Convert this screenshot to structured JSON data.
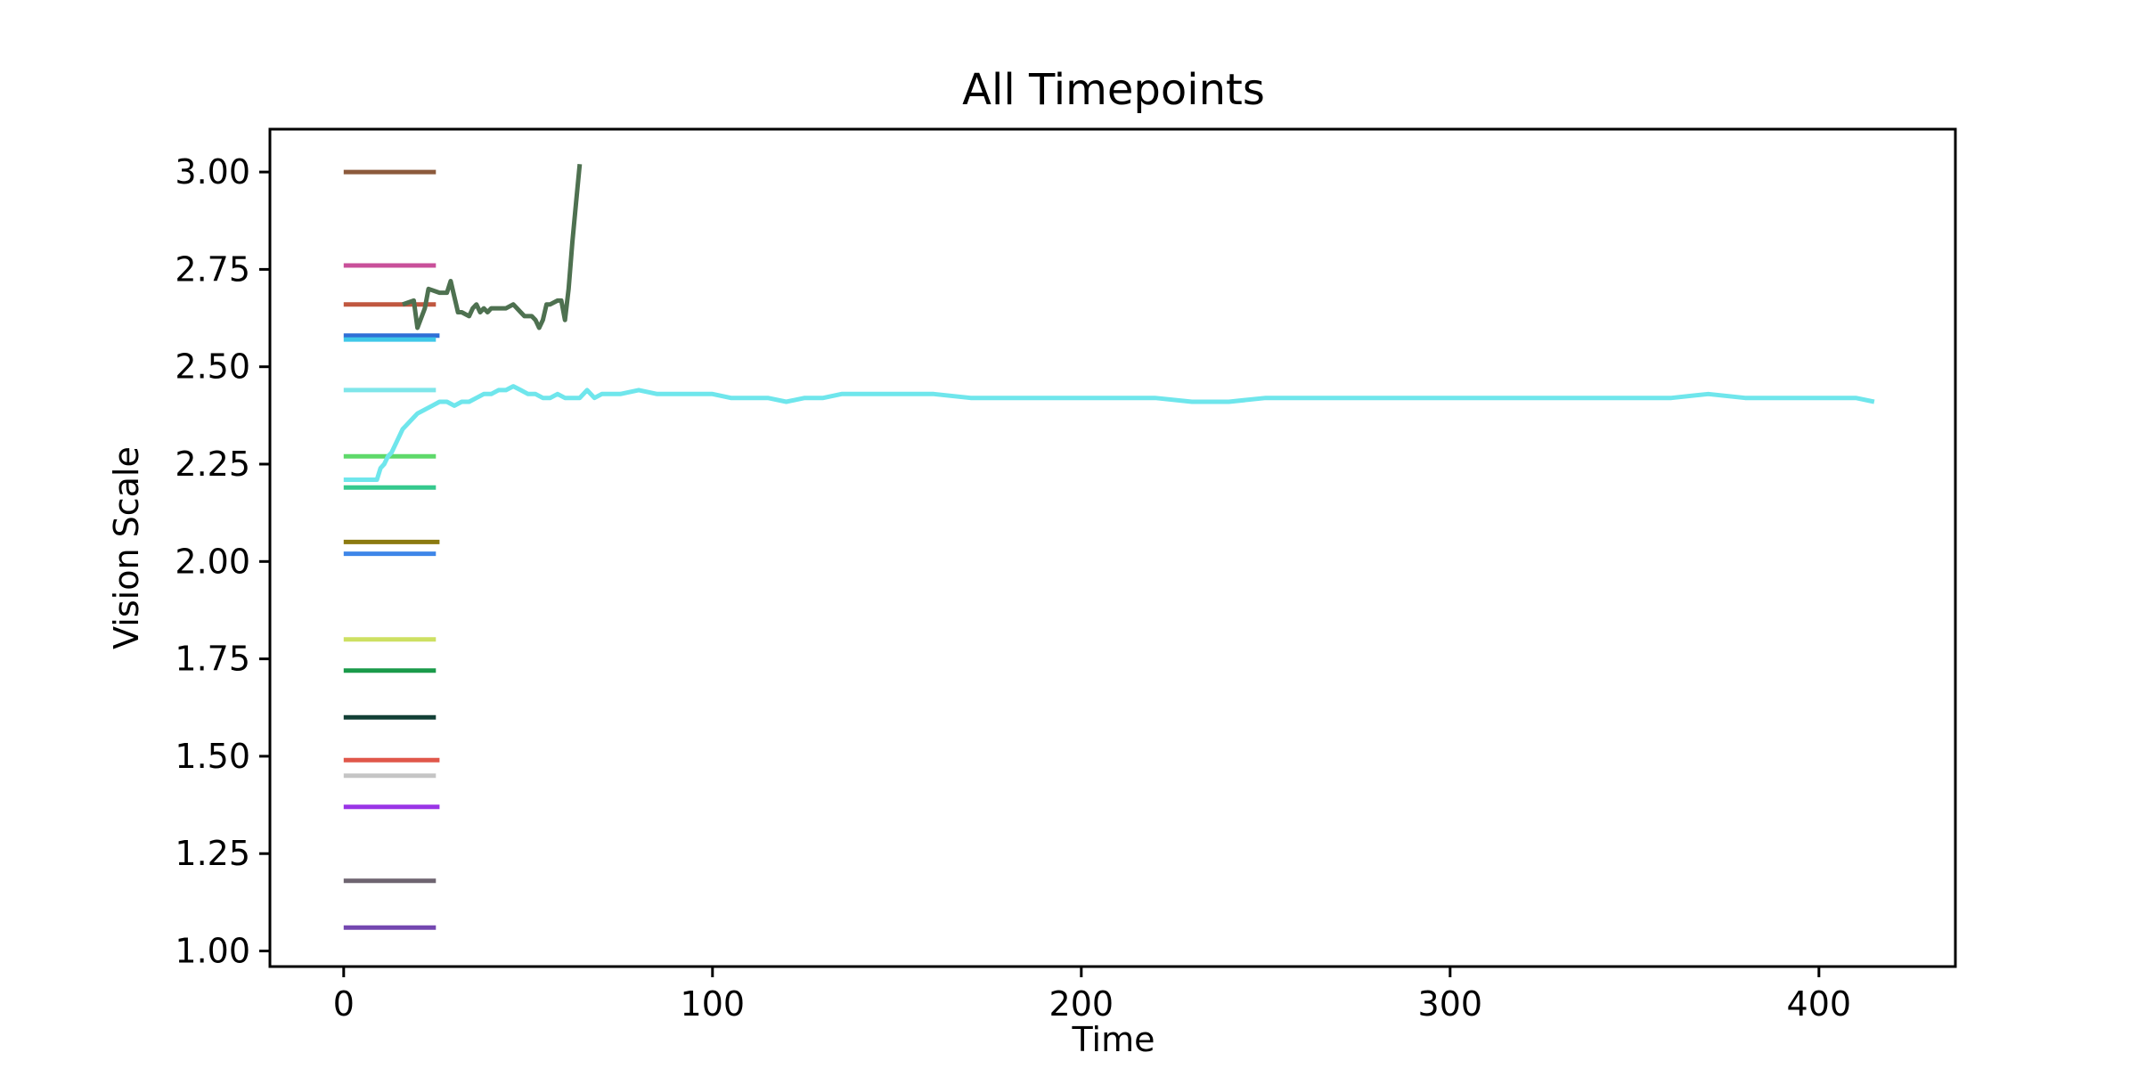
{
  "chart_data": {
    "type": "line",
    "title": "All Timepoints",
    "xlabel": "Time",
    "ylabel": "Vision Scale",
    "xlim": [
      -20,
      437
    ],
    "ylim": [
      0.96,
      3.11
    ],
    "xticks": [
      "0",
      "100",
      "200",
      "300",
      "400"
    ],
    "xtick_values": [
      0,
      100,
      200,
      300,
      400
    ],
    "yticks": [
      "1.00",
      "1.25",
      "1.50",
      "1.75",
      "2.00",
      "2.25",
      "2.50",
      "2.75",
      "3.00"
    ],
    "ytick_values": [
      1.0,
      1.25,
      1.5,
      1.75,
      2.0,
      2.25,
      2.5,
      2.75,
      3.0
    ],
    "grid": false,
    "legend": false,
    "series": [
      {
        "color": "#8c5a3c",
        "x": [
          0,
          25
        ],
        "y": [
          3.0,
          3.0
        ]
      },
      {
        "color": "#c9509a",
        "x": [
          0,
          25
        ],
        "y": [
          2.76,
          2.76
        ]
      },
      {
        "color": "#c0573f",
        "x": [
          0,
          25
        ],
        "y": [
          2.66,
          2.66
        ]
      },
      {
        "color": "#2f6fd6",
        "x": [
          0,
          26
        ],
        "y": [
          2.58,
          2.58
        ]
      },
      {
        "color": "#3fc8e8",
        "x": [
          0,
          25
        ],
        "y": [
          2.57,
          2.57
        ]
      },
      {
        "color": "#7fe6ea",
        "x": [
          0,
          25
        ],
        "y": [
          2.44,
          2.44
        ]
      },
      {
        "color": "#5ed96a",
        "x": [
          0,
          25
        ],
        "y": [
          2.27,
          2.27
        ]
      },
      {
        "color": "#35c98e",
        "x": [
          0,
          25
        ],
        "y": [
          2.19,
          2.19
        ]
      },
      {
        "color": "#8c7a10",
        "x": [
          0,
          26
        ],
        "y": [
          2.05,
          2.05
        ]
      },
      {
        "color": "#3e86e8",
        "x": [
          0,
          25
        ],
        "y": [
          2.02,
          2.02
        ]
      },
      {
        "color": "#cde062",
        "x": [
          0,
          25
        ],
        "y": [
          1.8,
          1.8
        ]
      },
      {
        "color": "#1a9a4a",
        "x": [
          0,
          25
        ],
        "y": [
          1.72,
          1.72
        ]
      },
      {
        "color": "#123f35",
        "x": [
          0,
          25
        ],
        "y": [
          1.6,
          1.6
        ]
      },
      {
        "color": "#e0574a",
        "x": [
          0,
          26
        ],
        "y": [
          1.49,
          1.49
        ]
      },
      {
        "color": "#c5c5c5",
        "x": [
          0,
          25
        ],
        "y": [
          1.45,
          1.45
        ]
      },
      {
        "color": "#9a35e6",
        "x": [
          0,
          26
        ],
        "y": [
          1.37,
          1.37
        ]
      },
      {
        "color": "#6e6470",
        "x": [
          0,
          25
        ],
        "y": [
          1.18,
          1.18
        ]
      },
      {
        "color": "#7447b0",
        "x": [
          0,
          25
        ],
        "y": [
          1.06,
          1.06
        ]
      },
      {
        "color": "#4e7150",
        "x": [
          16,
          19,
          20,
          22,
          23,
          26,
          28,
          29,
          31,
          32,
          34,
          35,
          36,
          37,
          38,
          39,
          40,
          42,
          44,
          46,
          47,
          48,
          49,
          51,
          52,
          53,
          54,
          55,
          56,
          58,
          59,
          60,
          61,
          62,
          63,
          64
        ],
        "y": [
          2.66,
          2.67,
          2.6,
          2.65,
          2.7,
          2.69,
          2.69,
          2.72,
          2.64,
          2.64,
          2.63,
          2.65,
          2.66,
          2.64,
          2.65,
          2.64,
          2.65,
          2.65,
          2.65,
          2.66,
          2.65,
          2.64,
          2.63,
          2.63,
          2.62,
          2.6,
          2.62,
          2.66,
          2.66,
          2.67,
          2.67,
          2.62,
          2.7,
          2.82,
          2.92,
          3.02
        ]
      },
      {
        "color": "#6fe6ec",
        "x": [
          0,
          2,
          4,
          6,
          8,
          9,
          10,
          11,
          12,
          13,
          14,
          15,
          16,
          17,
          18,
          19,
          20,
          22,
          24,
          26,
          28,
          30,
          32,
          34,
          36,
          38,
          40,
          42,
          44,
          46,
          48,
          50,
          52,
          54,
          56,
          58,
          60,
          62,
          64,
          66,
          68,
          70,
          75,
          80,
          85,
          90,
          95,
          100,
          105,
          110,
          115,
          120,
          125,
          130,
          135,
          140,
          145,
          150,
          160,
          170,
          180,
          190,
          200,
          210,
          220,
          230,
          240,
          250,
          260,
          270,
          280,
          290,
          300,
          310,
          320,
          330,
          340,
          345,
          350,
          360,
          370,
          380,
          390,
          400,
          410,
          415
        ],
        "y": [
          2.21,
          2.21,
          2.21,
          2.21,
          2.21,
          2.21,
          2.24,
          2.25,
          2.27,
          2.28,
          2.3,
          2.32,
          2.34,
          2.35,
          2.36,
          2.37,
          2.38,
          2.39,
          2.4,
          2.41,
          2.41,
          2.4,
          2.41,
          2.41,
          2.42,
          2.43,
          2.43,
          2.44,
          2.44,
          2.45,
          2.44,
          2.43,
          2.43,
          2.42,
          2.42,
          2.43,
          2.42,
          2.42,
          2.42,
          2.44,
          2.42,
          2.43,
          2.43,
          2.44,
          2.43,
          2.43,
          2.43,
          2.43,
          2.42,
          2.42,
          2.42,
          2.41,
          2.42,
          2.42,
          2.43,
          2.43,
          2.43,
          2.43,
          2.43,
          2.42,
          2.42,
          2.42,
          2.42,
          2.42,
          2.42,
          2.41,
          2.41,
          2.42,
          2.42,
          2.42,
          2.42,
          2.42,
          2.42,
          2.42,
          2.42,
          2.42,
          2.42,
          2.42,
          2.42,
          2.42,
          2.43,
          2.42,
          2.42,
          2.42,
          2.42,
          2.41
        ]
      }
    ]
  }
}
